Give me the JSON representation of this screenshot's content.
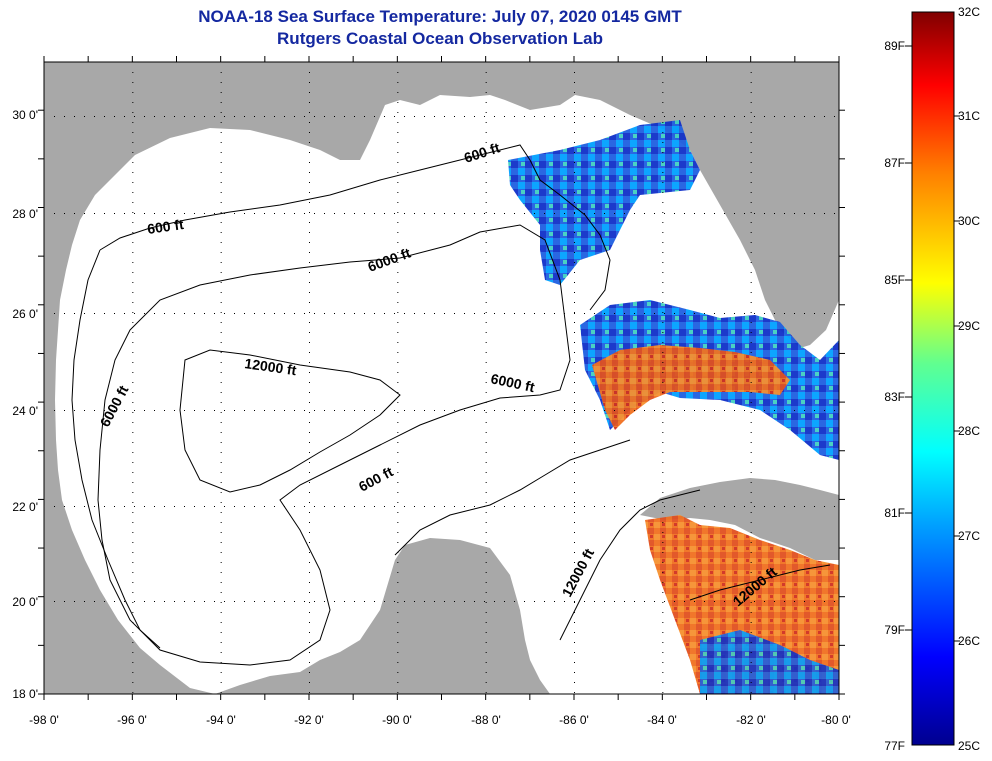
{
  "title": {
    "line1": "NOAA-18 Sea Surface Temperature:  July 07, 2020 0145 GMT",
    "line2": "Rutgers Coastal Ocean Observation Lab"
  },
  "axes": {
    "lon_labels": [
      "-98 0'",
      "-96 0'",
      "-94 0'",
      "-92 0'",
      "-90 0'",
      "-88 0'",
      "-86 0'",
      "-84 0'",
      "-82 0'",
      "-80 0'"
    ],
    "lat_labels": [
      "30 0'",
      "28 0'",
      "26 0'",
      "24 0'",
      "22 0'",
      "20 0'",
      "18 0'"
    ]
  },
  "contours": {
    "labels": [
      "600 ft",
      "600 ft",
      "6000 ft",
      "12000 ft",
      "6000 ft",
      "6000 ft",
      "600 ft",
      "12000 ft",
      "12000 ft"
    ]
  },
  "colorbar": {
    "fahrenheit_labels": [
      "89F",
      "87F",
      "85F",
      "83F",
      "81F",
      "79F",
      "77F"
    ],
    "celsius_labels": [
      "32C",
      "31C",
      "30C",
      "29C",
      "28C",
      "27C",
      "26C",
      "25C"
    ],
    "min_c": 25,
    "max_c": 32
  },
  "colors": {
    "land": "#a8a8a8",
    "water": "#ffffff",
    "title": "#1428a0"
  }
}
